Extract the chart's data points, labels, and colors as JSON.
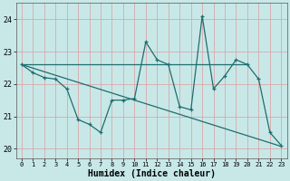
{
  "xlabel": "Humidex (Indice chaleur)",
  "xlim": [
    -0.5,
    23.5
  ],
  "ylim": [
    19.7,
    24.5
  ],
  "xticks": [
    0,
    1,
    2,
    3,
    4,
    5,
    6,
    7,
    8,
    9,
    10,
    11,
    12,
    13,
    14,
    15,
    16,
    17,
    18,
    19,
    20,
    21,
    22,
    23
  ],
  "yticks": [
    20,
    21,
    22,
    23,
    24
  ],
  "bg_color": "#c8e8e8",
  "grid_color": "#d8a8ac",
  "line_color": "#1e6e6e",
  "line1_x": [
    0,
    1,
    2,
    3,
    4,
    5,
    6,
    7,
    8,
    9,
    10,
    11,
    12,
    13,
    14,
    15,
    16,
    17,
    18,
    19,
    20,
    21,
    22,
    23
  ],
  "line1_y": [
    22.6,
    22.35,
    22.2,
    22.15,
    21.85,
    20.9,
    20.75,
    20.5,
    21.5,
    21.5,
    21.55,
    23.3,
    22.75,
    22.6,
    21.3,
    21.2,
    24.1,
    21.85,
    22.25,
    22.75,
    22.6,
    22.15,
    20.5,
    20.1
  ],
  "line2_x": [
    0,
    1,
    2,
    3,
    4,
    5,
    6,
    7,
    8,
    9,
    10,
    11,
    12,
    13,
    14,
    15,
    16,
    17,
    18,
    19,
    20
  ],
  "line2_y": [
    22.6,
    22.6,
    22.6,
    22.6,
    22.6,
    22.6,
    22.6,
    22.6,
    22.6,
    22.6,
    22.6,
    22.6,
    22.6,
    22.6,
    22.6,
    22.6,
    22.6,
    22.6,
    22.6,
    22.6,
    22.6
  ],
  "line3_x": [
    0,
    1,
    2,
    3,
    4,
    5,
    6,
    7,
    8,
    9,
    10,
    11,
    12,
    13,
    14,
    15,
    16,
    17,
    18,
    19,
    20,
    21,
    22,
    23
  ],
  "line3_y": [
    22.6,
    22.49,
    22.38,
    22.27,
    22.16,
    22.05,
    21.94,
    21.83,
    21.72,
    21.61,
    21.5,
    21.39,
    21.28,
    21.17,
    21.06,
    20.95,
    20.84,
    20.73,
    20.62,
    20.51,
    20.4,
    20.29,
    20.18,
    20.07
  ]
}
